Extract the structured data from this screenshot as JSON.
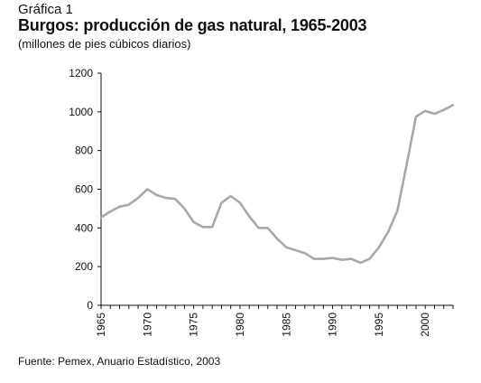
{
  "header": {
    "kicker": "Gráfica 1",
    "title": "Burgos: producción de gas natural, 1965-2003",
    "subtitle": "(millones de pies cúbicos diarios)"
  },
  "footer": {
    "source": "Fuente: Pemex, Anuario Estadístico, 2003"
  },
  "chart_data": {
    "type": "line",
    "title": "Burgos: producción de gas natural, 1965-2003",
    "xlabel": "",
    "ylabel": "",
    "xlim": [
      1965,
      2003
    ],
    "ylim": [
      0,
      1200
    ],
    "yticks": [
      0,
      200,
      400,
      600,
      800,
      1000,
      1200
    ],
    "xticks": [
      1965,
      1970,
      1975,
      1980,
      1985,
      1990,
      1995,
      2000
    ],
    "grid": false,
    "line_color": "#a8a8a8",
    "series": [
      {
        "x": [
          1965,
          1966,
          1967,
          1968,
          1969,
          1970,
          1971,
          1972,
          1973,
          1974,
          1975,
          1976,
          1977,
          1978,
          1979,
          1980,
          1981,
          1982,
          1983,
          1984,
          1985,
          1986,
          1987,
          1988,
          1989,
          1990,
          1991,
          1992,
          1993,
          1994,
          1995,
          1996,
          1997,
          1998,
          1999,
          2000,
          2001,
          2002,
          2003
        ],
        "y": [
          455,
          485,
          510,
          520,
          555,
          600,
          570,
          555,
          550,
          500,
          430,
          405,
          405,
          530,
          565,
          530,
          460,
          400,
          400,
          345,
          300,
          285,
          270,
          240,
          240,
          245,
          235,
          240,
          220,
          240,
          300,
          380,
          490,
          730,
          975,
          1005,
          990,
          1010,
          1035
        ]
      }
    ]
  }
}
